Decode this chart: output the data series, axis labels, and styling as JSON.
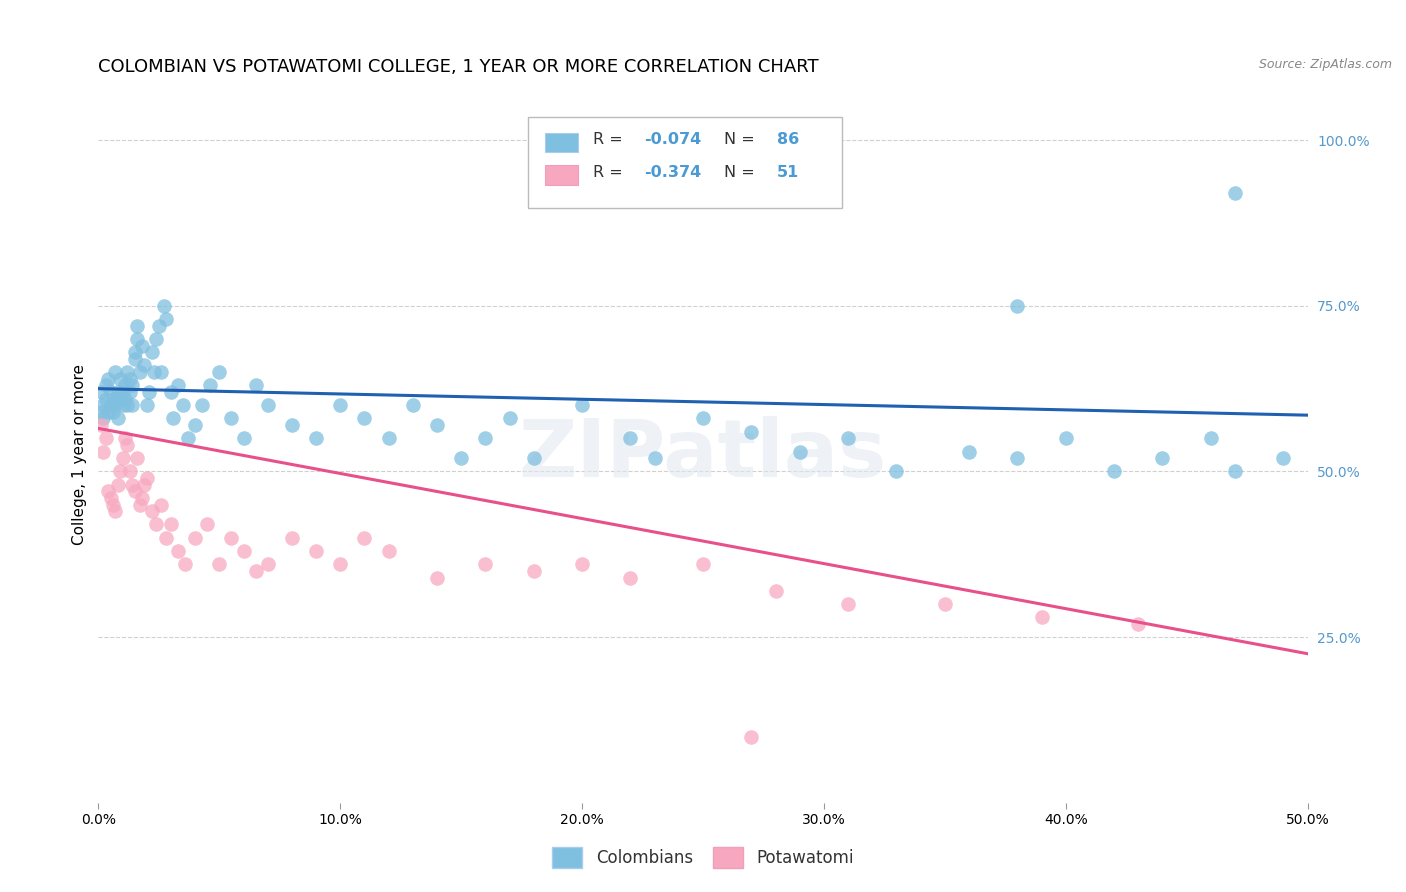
{
  "title": "COLOMBIAN VS POTAWATOMI COLLEGE, 1 YEAR OR MORE CORRELATION CHART",
  "source": "Source: ZipAtlas.com",
  "ylabel": "College, 1 year or more",
  "xlim": [
    0.0,
    0.5
  ],
  "ylim": [
    0.0,
    1.05
  ],
  "xtick_vals": [
    0.0,
    0.1,
    0.2,
    0.3,
    0.4,
    0.5
  ],
  "xtick_labels": [
    "0.0%",
    "10.0%",
    "20.0%",
    "30.0%",
    "40.0%",
    "50.0%"
  ],
  "ytick_positions_right": [
    0.25,
    0.5,
    0.75,
    1.0
  ],
  "ytick_labels_right": [
    "25.0%",
    "50.0%",
    "75.0%",
    "100.0%"
  ],
  "blue_color": "#7fbfdf",
  "pink_color": "#f7a8c0",
  "blue_line_color": "#2060b0",
  "pink_line_color": "#e8508a",
  "right_tick_color": "#5599cc",
  "R_blue": -0.074,
  "N_blue": 86,
  "R_pink": -0.374,
  "N_pink": 51,
  "blue_scatter_x": [
    0.001,
    0.001,
    0.002,
    0.002,
    0.003,
    0.003,
    0.004,
    0.004,
    0.005,
    0.005,
    0.006,
    0.006,
    0.007,
    0.007,
    0.008,
    0.008,
    0.009,
    0.009,
    0.01,
    0.01,
    0.011,
    0.011,
    0.012,
    0.012,
    0.013,
    0.013,
    0.014,
    0.014,
    0.015,
    0.015,
    0.016,
    0.016,
    0.017,
    0.018,
    0.019,
    0.02,
    0.021,
    0.022,
    0.023,
    0.024,
    0.025,
    0.026,
    0.027,
    0.028,
    0.03,
    0.031,
    0.033,
    0.035,
    0.037,
    0.04,
    0.043,
    0.046,
    0.05,
    0.055,
    0.06,
    0.065,
    0.07,
    0.08,
    0.09,
    0.1,
    0.11,
    0.12,
    0.13,
    0.14,
    0.15,
    0.16,
    0.17,
    0.18,
    0.2,
    0.22,
    0.23,
    0.25,
    0.27,
    0.29,
    0.31,
    0.33,
    0.36,
    0.38,
    0.4,
    0.42,
    0.44,
    0.46,
    0.47,
    0.49,
    0.47,
    0.38
  ],
  "blue_scatter_y": [
    0.62,
    0.59,
    0.6,
    0.58,
    0.63,
    0.61,
    0.59,
    0.64,
    0.62,
    0.6,
    0.61,
    0.59,
    0.65,
    0.6,
    0.62,
    0.58,
    0.64,
    0.61,
    0.6,
    0.62,
    0.61,
    0.63,
    0.6,
    0.65,
    0.62,
    0.64,
    0.6,
    0.63,
    0.67,
    0.68,
    0.72,
    0.7,
    0.65,
    0.69,
    0.66,
    0.6,
    0.62,
    0.68,
    0.65,
    0.7,
    0.72,
    0.65,
    0.75,
    0.73,
    0.62,
    0.58,
    0.63,
    0.6,
    0.55,
    0.57,
    0.6,
    0.63,
    0.65,
    0.58,
    0.55,
    0.63,
    0.6,
    0.57,
    0.55,
    0.6,
    0.58,
    0.55,
    0.6,
    0.57,
    0.52,
    0.55,
    0.58,
    0.52,
    0.6,
    0.55,
    0.52,
    0.58,
    0.56,
    0.53,
    0.55,
    0.5,
    0.53,
    0.52,
    0.55,
    0.5,
    0.52,
    0.55,
    0.5,
    0.52,
    0.92,
    0.75
  ],
  "pink_scatter_x": [
    0.001,
    0.002,
    0.003,
    0.004,
    0.005,
    0.006,
    0.007,
    0.008,
    0.009,
    0.01,
    0.011,
    0.012,
    0.013,
    0.014,
    0.015,
    0.016,
    0.017,
    0.018,
    0.019,
    0.02,
    0.022,
    0.024,
    0.026,
    0.028,
    0.03,
    0.033,
    0.036,
    0.04,
    0.045,
    0.05,
    0.055,
    0.06,
    0.065,
    0.07,
    0.08,
    0.09,
    0.1,
    0.11,
    0.12,
    0.14,
    0.16,
    0.18,
    0.2,
    0.22,
    0.25,
    0.28,
    0.31,
    0.35,
    0.39,
    0.43,
    0.27
  ],
  "pink_scatter_y": [
    0.57,
    0.53,
    0.55,
    0.47,
    0.46,
    0.45,
    0.44,
    0.48,
    0.5,
    0.52,
    0.55,
    0.54,
    0.5,
    0.48,
    0.47,
    0.52,
    0.45,
    0.46,
    0.48,
    0.49,
    0.44,
    0.42,
    0.45,
    0.4,
    0.42,
    0.38,
    0.36,
    0.4,
    0.42,
    0.36,
    0.4,
    0.38,
    0.35,
    0.36,
    0.4,
    0.38,
    0.36,
    0.4,
    0.38,
    0.34,
    0.36,
    0.35,
    0.36,
    0.34,
    0.36,
    0.32,
    0.3,
    0.3,
    0.28,
    0.27,
    0.1
  ],
  "blue_trend_x": [
    0.0,
    0.5
  ],
  "blue_trend_y": [
    0.625,
    0.585
  ],
  "pink_trend_x": [
    0.0,
    0.5
  ],
  "pink_trend_y": [
    0.565,
    0.225
  ],
  "watermark": "ZIPatlas",
  "background_color": "#ffffff",
  "grid_color": "#d0d0d0",
  "title_fontsize": 13,
  "axis_label_fontsize": 11,
  "tick_fontsize": 10,
  "legend_entry_1": "R = -0.074   N = 86",
  "legend_entry_2": "R = -0.374   N = 51",
  "bottom_legend_labels": [
    "Colombians",
    "Potawatomi"
  ]
}
